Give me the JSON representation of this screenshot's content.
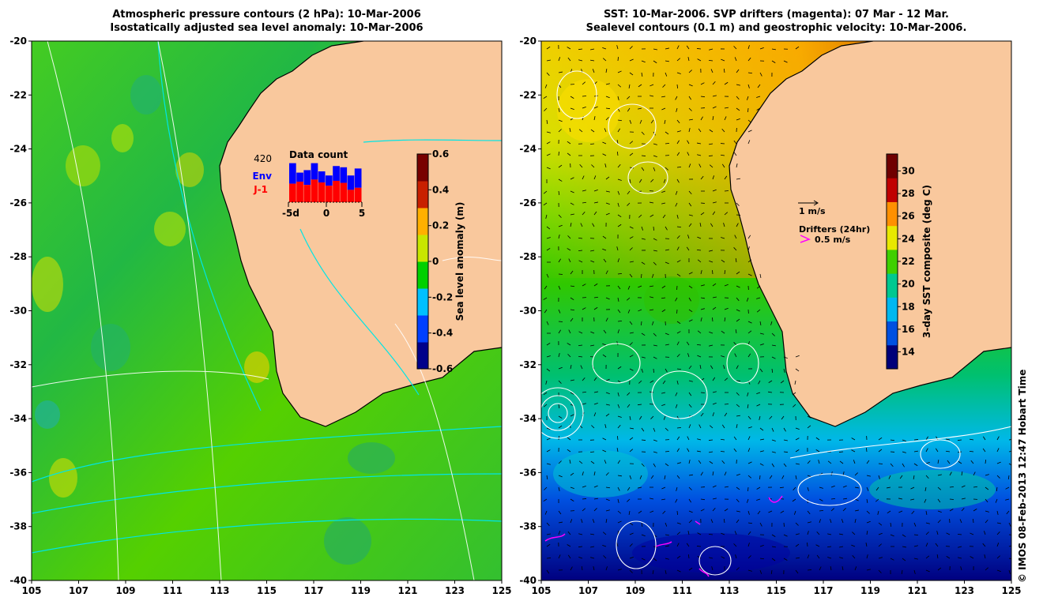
{
  "left_panel": {
    "title_line1": "Atmospheric pressure contours (2 hPa): 10-Mar-2006",
    "title_line2": "Isostatically adjusted sea level anomaly: 10-Mar-2006",
    "colorbar": {
      "label": "Sea level anomaly (m)",
      "ticks": [
        "0.6",
        "0.4",
        "0.2",
        "0",
        "-0.2",
        "-0.4",
        "-0.6"
      ],
      "range": [
        -0.6,
        0.6
      ],
      "colors": [
        "#00008b",
        "#0040ff",
        "#00c0ff",
        "#00d000",
        "#c8e600",
        "#ffb000",
        "#c82000",
        "#780000"
      ]
    },
    "inset": {
      "title": "Data count",
      "count_label": "420",
      "legend_env": "Env",
      "legend_j1": "J-1",
      "x_ticks": [
        "-5d",
        "0",
        "5"
      ],
      "env_color": "#0000ff",
      "j1_color": "#ff0000",
      "env_totals": [
        0.95,
        0.72,
        0.78,
        0.95,
        0.75,
        0.65,
        0.88,
        0.85,
        0.65,
        0.82
      ],
      "j1_values": [
        0.45,
        0.5,
        0.42,
        0.55,
        0.48,
        0.4,
        0.52,
        0.47,
        0.3,
        0.35
      ]
    }
  },
  "right_panel": {
    "title_line1": "SST: 10-Mar-2006. SVP drifters (magenta): 07 Mar - 12 Mar.",
    "title_line2": "Sealevel contours (0.1 m) and geostrophic velocity: 10-Mar-2006.",
    "colorbar": {
      "label": "3-day SST composite (deg C)",
      "ticks": [
        "30",
        "28",
        "26",
        "24",
        "22",
        "20",
        "18",
        "16",
        "14"
      ],
      "range": [
        12.5,
        31.5
      ],
      "colors": [
        "#00007a",
        "#0050e0",
        "#00b8f0",
        "#00c890",
        "#40d000",
        "#e8e800",
        "#ff9000",
        "#c00000",
        "#700000"
      ]
    },
    "velocity_scale_label": "1 m/s",
    "drifters_label": "Drifters (24hr)",
    "drifters_speed_label": "0.5 m/s",
    "drifter_color": "#ff00ff"
  },
  "map_axes": {
    "x_ticks": [
      "105",
      "107",
      "109",
      "111",
      "113",
      "115",
      "117",
      "119",
      "121",
      "123",
      "125"
    ],
    "y_ticks": [
      "-20",
      "-22",
      "-24",
      "-26",
      "-28",
      "-30",
      "-32",
      "-34",
      "-36",
      "-38",
      "-40"
    ],
    "lon_range": [
      105,
      125
    ],
    "lat_range": [
      -40,
      -20
    ]
  },
  "colors": {
    "land": "#f9c89d",
    "coastline": "#000000",
    "pressure_contour": "#00e5e5",
    "sealevel_contour": "#ffffff"
  },
  "credit": "© IMOS 08-Feb-2013 12:47 Hobart Time"
}
